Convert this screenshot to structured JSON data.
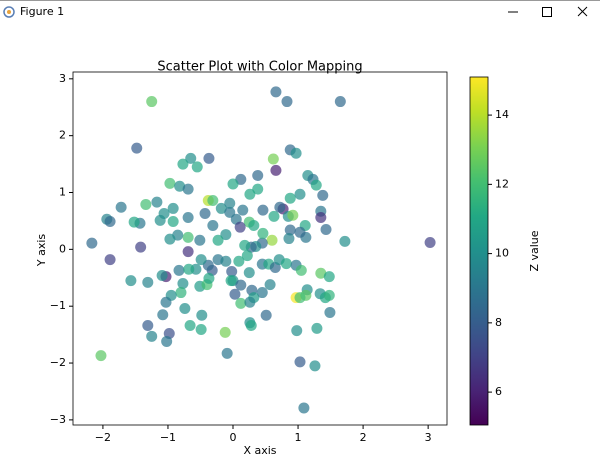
{
  "window_title": "Figure 1",
  "chart_data": {
    "type": "scatter",
    "title": "Scatter Plot with Color Mapping",
    "x_label": "X axis",
    "y_label": "Y axis",
    "colorbar_label": "Z value",
    "colormap": "viridis",
    "alpha": 0.7,
    "xlim": [
      -2.46,
      3.29
    ],
    "ylim": [
      -3.09,
      3.12
    ],
    "clim": [
      5.05,
      15.1
    ],
    "xticks": [
      {
        "value": -2,
        "label": "−2"
      },
      {
        "value": -1,
        "label": "−1"
      },
      0,
      1,
      2,
      3
    ],
    "yticks": [
      {
        "value": -3,
        "label": "−3"
      },
      {
        "value": -2,
        "label": "−2"
      },
      {
        "value": -1,
        "label": "−1"
      },
      0,
      1,
      2,
      3
    ],
    "cticks": [
      6,
      8,
      10,
      12,
      14
    ],
    "x": [
      -1.25,
      0.66,
      0.83,
      1.65,
      -1.48,
      -0.65,
      -0.37,
      0.62,
      0.66,
      0.88,
      0.97,
      -0.77,
      -0.55,
      1.15,
      1.23,
      1.28,
      0.38,
      0.12,
      0,
      -0.97,
      -0.82,
      -0.69,
      -1.72,
      -1.94,
      -1.89,
      -1.34,
      -1.17,
      -1.06,
      -0.92,
      -1.12,
      -0.92,
      -0.69,
      -0.43,
      -0.38,
      -0.31,
      -0.18,
      -0.05,
      0.05,
      0.15,
      0.26,
      0.38,
      0.25,
      0.11,
      0.32,
      0.46,
      0.77,
      0.72,
      0.63,
      0.85,
      0.92,
      0.88,
      1.03,
      1.38,
      1.35,
      1.35,
      1.43,
      1.72,
      1.11,
      1.12,
      0.88,
      1.03,
      0.86,
      0.6,
      0.45,
      0.35,
      0.28,
      0.18,
      0.46,
      -0.31,
      -0.69,
      -0.85,
      -0.97,
      -1.42,
      -1.43,
      -1.52,
      -2.17,
      -1.89,
      -1.57,
      -1.31,
      -1.03,
      -0.69,
      -0.83,
      -0.77,
      -0.8,
      -0.95,
      -1.03,
      -0.74,
      -1.08,
      -1.31,
      -1.25,
      -0.98,
      -1.02,
      -0.66,
      -0.49,
      -0.48,
      -0.51,
      -0.4,
      -0.32,
      -0.38,
      -0.49,
      -0.23,
      -0.57,
      -0.68,
      -0.11,
      -0.02,
      0,
      0.12,
      0.03,
      0.12,
      -0.03,
      0.25,
      0.22,
      0.09,
      0.45,
      0.55,
      0.65,
      0.71,
      0.82,
      0.97,
      1.05,
      1.14,
      1.34,
      1.42,
      1.48,
      1.35,
      1.48,
      0.97,
      1.12,
      1.03,
      0.57,
      0.45,
      0.29,
      0.32,
      0.26,
      0.51,
      0.26,
      0.28,
      -0.12,
      0.98,
      1.29,
      1.49,
      1.03,
      1.26,
      -0.09,
      -2.03,
      1.09,
      3.03,
      -0.05,
      -0.11,
      -0.23,
      -0.51,
      -1.09,
      -0.37
    ],
    "y": [
      2.6,
      2.77,
      2.6,
      2.6,
      1.78,
      1.6,
      1.6,
      1.59,
      1.39,
      1.75,
      1.69,
      1.5,
      1.45,
      1.3,
      1.23,
      1.13,
      1.3,
      1.23,
      1.15,
      1.16,
      1.11,
      1.06,
      0.74,
      0.53,
      0.49,
      0.79,
      0.83,
      0.63,
      0.72,
      0.51,
      0.49,
      0.56,
      0.63,
      0.86,
      0.86,
      0.72,
      0.65,
      0.53,
      0.69,
      0.97,
      1.06,
      0.48,
      0.39,
      0.42,
      0.69,
      0.71,
      0.74,
      0.58,
      0.58,
      0.6,
      0.9,
      0.97,
      0.95,
      0.67,
      0.56,
      0.35,
      0.14,
      0.42,
      0.21,
      0.34,
      0.3,
      0.19,
      0.16,
      0.11,
      0.05,
      0.04,
      0.07,
      0.28,
      0.42,
      0.21,
      0.25,
      0.18,
      0.04,
      0.46,
      0.48,
      0.11,
      -0.18,
      -0.55,
      -0.58,
      -0.48,
      -0.04,
      -0.37,
      -0.6,
      -0.76,
      -0.81,
      -0.93,
      -1.04,
      -1.15,
      -1.34,
      -1.53,
      -1.48,
      -1.62,
      -1.34,
      -1.41,
      -1.16,
      -0.65,
      -0.62,
      -0.37,
      -0.28,
      -0.18,
      -0.18,
      -0.35,
      -0.35,
      -0.21,
      -0.39,
      -0.55,
      -0.63,
      -0.79,
      -0.95,
      -0.55,
      -0.41,
      -0.11,
      -0.21,
      -0.26,
      -0.26,
      -0.32,
      -0.18,
      -0.25,
      -0.28,
      -0.37,
      -0.71,
      -0.78,
      -0.85,
      -0.81,
      -0.42,
      -0.48,
      -0.85,
      -0.81,
      -0.85,
      -0.62,
      -0.76,
      -0.72,
      -0.85,
      -0.93,
      -1.16,
      -1.29,
      -1.34,
      -1.46,
      -1.43,
      -1.39,
      -1.11,
      -1.98,
      -2.05,
      -1.83,
      -1.87,
      -2.79,
      0.12,
      0.81,
      0.26,
      0.16,
      0.16,
      -0.46,
      -0.51
    ],
    "c": [
      12.5,
      8.5,
      8.5,
      8.5,
      8,
      10,
      8,
      13,
      6,
      8.5,
      10,
      11,
      11,
      10,
      9,
      11,
      8.5,
      8.5,
      11,
      12,
      10,
      9,
      9,
      9.5,
      8.5,
      12,
      9.5,
      10,
      10,
      10,
      11,
      9,
      8.5,
      14,
      12,
      10,
      9,
      9,
      9,
      11,
      11,
      12,
      7,
      11,
      8.5,
      6,
      8.5,
      11,
      10,
      13,
      11,
      10,
      8.5,
      9,
      6.5,
      8.5,
      10,
      11,
      9,
      8.5,
      8.5,
      9.5,
      13.5,
      8.5,
      10,
      8.5,
      11,
      11.5,
      9,
      12,
      9.5,
      10,
      7,
      9,
      11,
      8.5,
      7,
      10,
      9.5,
      6,
      6.5,
      9,
      10,
      11.5,
      10,
      9,
      10,
      9,
      8,
      9.5,
      7.5,
      9,
      11,
      11,
      10,
      10.5,
      12,
      8,
      8.5,
      10,
      9,
      10,
      11,
      9.5,
      8,
      10,
      8.5,
      8,
      12,
      11,
      10,
      11,
      11,
      9,
      11,
      8.5,
      10,
      11,
      9,
      12,
      10,
      10,
      11,
      11.5,
      12.5,
      11,
      15,
      12.5,
      12,
      9.5,
      9,
      8.5,
      10.5,
      9.5,
      8.5,
      10,
      11,
      13,
      10,
      10.5,
      9,
      8,
      10,
      9,
      12.5,
      9,
      7,
      9.5,
      10,
      11,
      9,
      10,
      11
    ]
  }
}
